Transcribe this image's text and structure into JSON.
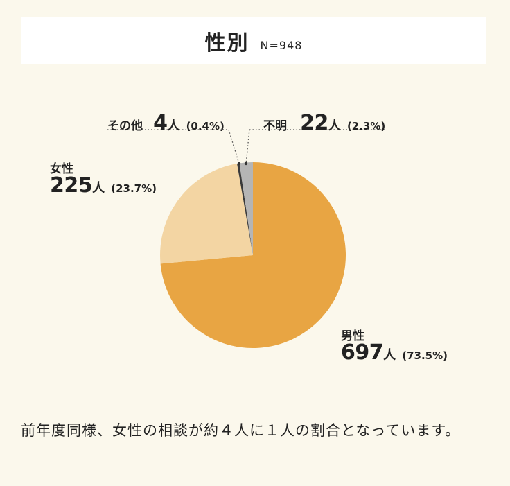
{
  "header": {
    "title": "性別",
    "n": "N=948"
  },
  "colors": {
    "male": "#e8a543",
    "female": "#f3d5a3",
    "other": "#3a3a3a",
    "unknown": "#b5b5b5"
  },
  "chart_data": {
    "type": "pie",
    "slices": [
      {
        "name": "男性",
        "value": 697,
        "unit": "人",
        "percent": "(73.5%)",
        "color": "#e8a543"
      },
      {
        "name": "女性",
        "value": 225,
        "unit": "人",
        "percent": "(23.7%)",
        "color": "#f3d5a3"
      },
      {
        "name": "その他",
        "value": 4,
        "unit": "人",
        "percent": "(0.4%)",
        "color": "#3a3a3a"
      },
      {
        "name": "不明",
        "value": 22,
        "unit": "人",
        "percent": "(2.3%)",
        "color": "#b5b5b5"
      }
    ]
  },
  "note": "前年度同様、女性の相談が約４人に１人の割合となっています。"
}
